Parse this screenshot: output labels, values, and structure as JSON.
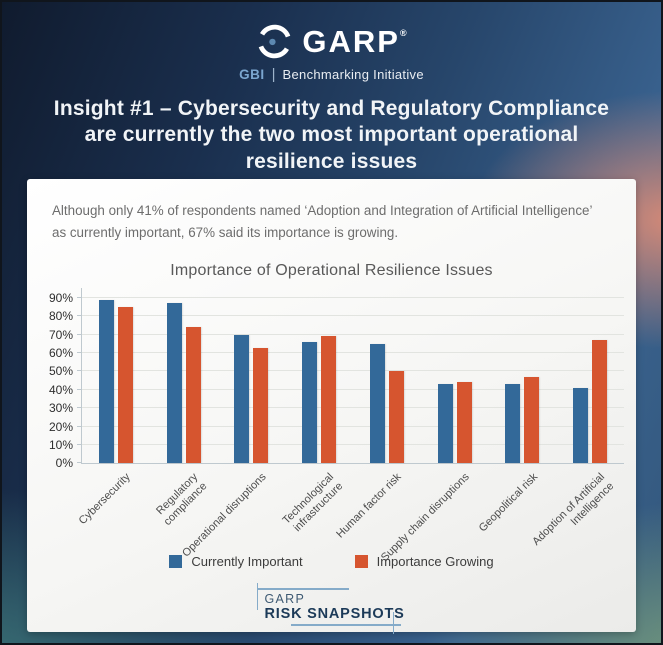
{
  "header": {
    "brand": "GARP",
    "registered_mark": "®",
    "gbi": "GBI",
    "divider": "|",
    "gbi_label": "Benchmarking Initiative"
  },
  "title": "Insight #1 – Cybersecurity and Regulatory Compliance are currently the two most important operational resilience issues",
  "note": "Although only 41% of respondents named ‘Adoption and Integration of Artificial Intelligence’ as currently important, 67% said its importance is growing.",
  "chart_data": {
    "type": "bar",
    "title": "Importance of Operational Resilience Issues",
    "categories": [
      "Cybersecurity",
      "Regulatory compliance",
      "Operational disruptions",
      "Technological\ninfrastructure",
      "Human factor risk",
      "Supply chain disruptions",
      "Geopolitical risk",
      "Adoption of Artificial\nIntelligence"
    ],
    "series": [
      {
        "name": "Currently Important",
        "color": "#336999",
        "values": [
          89,
          87,
          70,
          66,
          65,
          43,
          43,
          41
        ]
      },
      {
        "name": "Importance Growing",
        "color": "#D6552F",
        "values": [
          85,
          74,
          63,
          69,
          50,
          44,
          47,
          67
        ]
      }
    ],
    "yticks": [
      0,
      10,
      20,
      30,
      40,
      50,
      60,
      70,
      80,
      90
    ],
    "ytick_suffix": "%",
    "ylim": [
      0,
      95
    ],
    "grid": true,
    "legend_position": "bottom"
  },
  "footer": {
    "line1": "GARP",
    "line2": "RISK SNAPSHOTS"
  },
  "colors": {
    "bar_blue": "#336999",
    "bar_orange": "#D6552F",
    "navy_text": "#1c3a58",
    "accent_light_blue": "#7ba6cf"
  }
}
